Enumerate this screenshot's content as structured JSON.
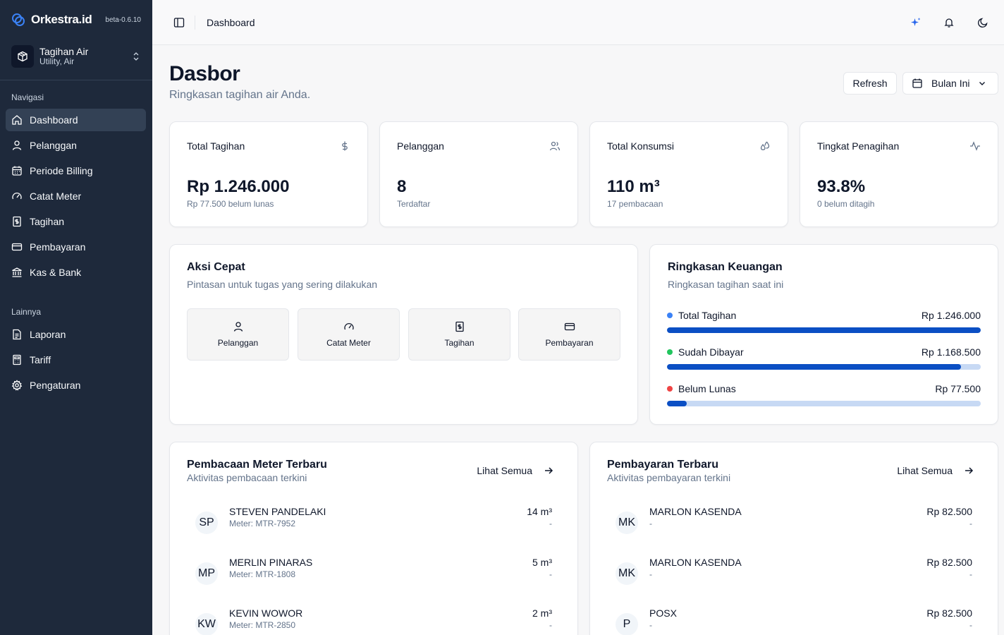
{
  "brand": {
    "name": "Orkestra.id",
    "version": "beta-0.6.10"
  },
  "org": {
    "name": "Tagihan Air",
    "sub": "Utility, Air"
  },
  "nav": {
    "section1": "Navigasi",
    "items1": [
      {
        "label": "Dashboard",
        "icon": "home-icon"
      },
      {
        "label": "Pelanggan",
        "icon": "user-icon"
      },
      {
        "label": "Periode Billing",
        "icon": "calendar-icon"
      },
      {
        "label": "Catat Meter",
        "icon": "gauge-icon"
      },
      {
        "label": "Tagihan",
        "icon": "receipt-icon"
      },
      {
        "label": "Pembayaran",
        "icon": "credit-card-icon"
      },
      {
        "label": "Kas & Bank",
        "icon": "bank-icon"
      }
    ],
    "section2": "Lainnya",
    "items2": [
      {
        "label": "Laporan",
        "icon": "file-icon"
      },
      {
        "label": "Tariff",
        "icon": "calculator-icon"
      },
      {
        "label": "Pengaturan",
        "icon": "gear-icon"
      }
    ]
  },
  "header": {
    "breadcrumb": "Dashboard"
  },
  "page": {
    "title": "Dasbor",
    "subtitle": "Ringkasan tagihan air Anda.",
    "refresh": "Refresh",
    "period": "Bulan Ini"
  },
  "stats": [
    {
      "label": "Total Tagihan",
      "value": "Rp 1.246.000",
      "sub": "Rp 77.500 belum lunas",
      "icon": "dollar-icon"
    },
    {
      "label": "Pelanggan",
      "value": "8",
      "sub": "Terdaftar",
      "icon": "users-icon"
    },
    {
      "label": "Total Konsumsi",
      "value": "110 m³",
      "sub": "17 pembacaan",
      "icon": "droplets-icon"
    },
    {
      "label": "Tingkat Penagihan",
      "value": "93.8%",
      "sub": "0 belum ditagih",
      "icon": "activity-icon"
    }
  ],
  "quick": {
    "title": "Aksi Cepat",
    "subtitle": "Pintasan untuk tugas yang sering dilakukan",
    "actions": [
      {
        "label": "Pelanggan",
        "icon": "user-icon"
      },
      {
        "label": "Catat Meter",
        "icon": "gauge-icon"
      },
      {
        "label": "Tagihan",
        "icon": "receipt-icon"
      },
      {
        "label": "Pembayaran",
        "icon": "credit-card-icon"
      }
    ]
  },
  "finance": {
    "title": "Ringkasan Keuangan",
    "subtitle": "Ringkasan tagihan saat ini",
    "rows": [
      {
        "label": "Total Tagihan",
        "amount": "Rp 1.246.000",
        "dot": "#3b82f6",
        "fraction": 1.0
      },
      {
        "label": "Sudah Dibayar",
        "amount": "Rp 1.168.500",
        "dot": "#22c55e",
        "fraction": 0.938
      },
      {
        "label": "Belum Lunas",
        "amount": "Rp 77.500",
        "dot": "#ef4444",
        "fraction": 0.062
      }
    ]
  },
  "meter": {
    "title": "Pembacaan Meter Terbaru",
    "subtitle": "Aktivitas pembacaan terkini",
    "see_all": "Lihat Semua",
    "rows": [
      {
        "initials": "SP",
        "name": "STEVEN PANDELAKI",
        "meta": "Meter: MTR-7952",
        "value": "14 m³",
        "sub": "-"
      },
      {
        "initials": "MP",
        "name": "MERLIN PINARAS",
        "meta": "Meter: MTR-1808",
        "value": "5 m³",
        "sub": "-"
      },
      {
        "initials": "KW",
        "name": "KEVIN WOWOR",
        "meta": "Meter: MTR-2850",
        "value": "2 m³",
        "sub": "-"
      }
    ]
  },
  "payments": {
    "title": "Pembayaran Terbaru",
    "subtitle": "Aktivitas pembayaran terkini",
    "see_all": "Lihat Semua",
    "rows": [
      {
        "initials": "MK",
        "name": "MARLON KASENDA",
        "meta": "-",
        "value": "Rp 82.500",
        "sub": "-"
      },
      {
        "initials": "MK",
        "name": "MARLON KASENDA",
        "meta": "-",
        "value": "Rp 82.500",
        "sub": "-"
      },
      {
        "initials": "P",
        "name": "POSX",
        "meta": "-",
        "value": "Rp 82.500",
        "sub": "-"
      }
    ]
  },
  "colors": {
    "sidebar": "#1e293b",
    "accent": "#0b4fc4",
    "sparkle": "#2563eb"
  }
}
